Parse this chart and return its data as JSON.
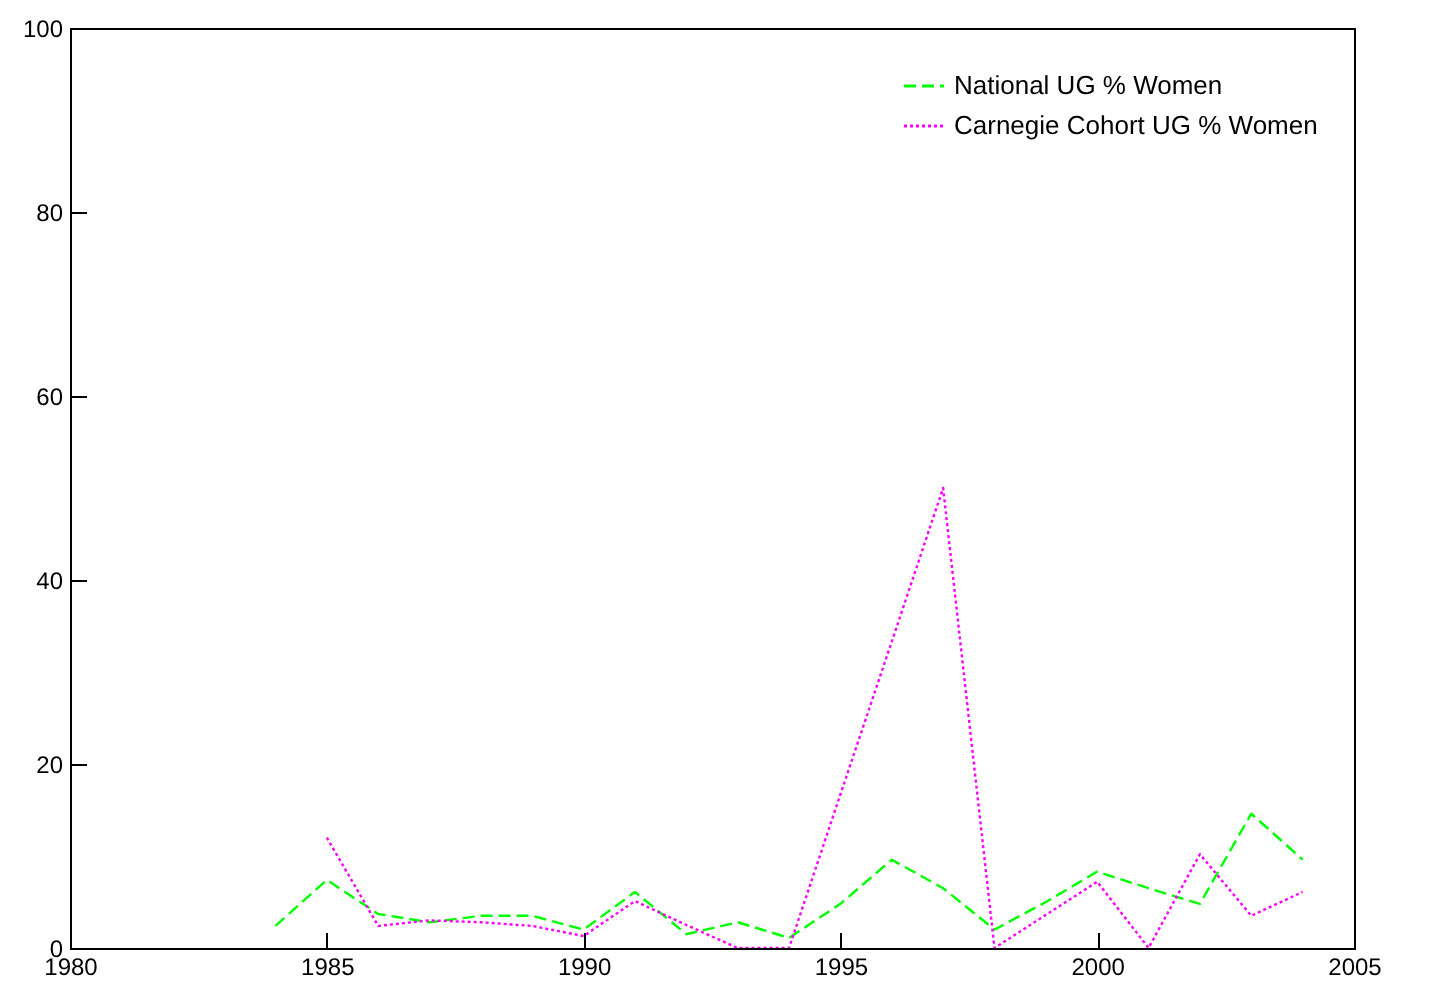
{
  "chart_data": {
    "type": "line",
    "x": [
      1984,
      1985,
      1986,
      1987,
      1988,
      1989,
      1990,
      1991,
      1992,
      1993,
      1994,
      1995,
      1996,
      1997,
      1998,
      1999,
      2000,
      2001,
      2002,
      2003,
      2004
    ],
    "series": [
      {
        "name": "National UG % Women",
        "color": "#00ff00",
        "line_style": "dashed",
        "values": [
          2.4,
          7.4,
          3.7,
          2.8,
          3.5,
          3.5,
          2.0,
          6.1,
          1.5,
          2.8,
          1.1,
          4.8,
          9.6,
          6.5,
          2.0,
          5.0,
          8.3,
          6.5,
          4.8,
          14.6,
          9.6
        ]
      },
      {
        "name": "Carnegie Cohort UG % Women",
        "color": "#ff00ff",
        "line_style": "dotted",
        "values": [
          null,
          12.0,
          2.4,
          3.0,
          2.8,
          2.4,
          1.3,
          5.1,
          2.5,
          0,
          0,
          16.7,
          33.3,
          50,
          0,
          3.6,
          7.2,
          0,
          10.2,
          3.5,
          6.1
        ]
      }
    ],
    "xlim": [
      1980,
      2005
    ],
    "xticks": [
      1980,
      1985,
      1990,
      1995,
      2000,
      2005
    ],
    "ylim": [
      0,
      100
    ],
    "yticks": [
      0,
      20,
      40,
      60,
      80,
      100
    ],
    "grid": false,
    "legend": "top right"
  }
}
